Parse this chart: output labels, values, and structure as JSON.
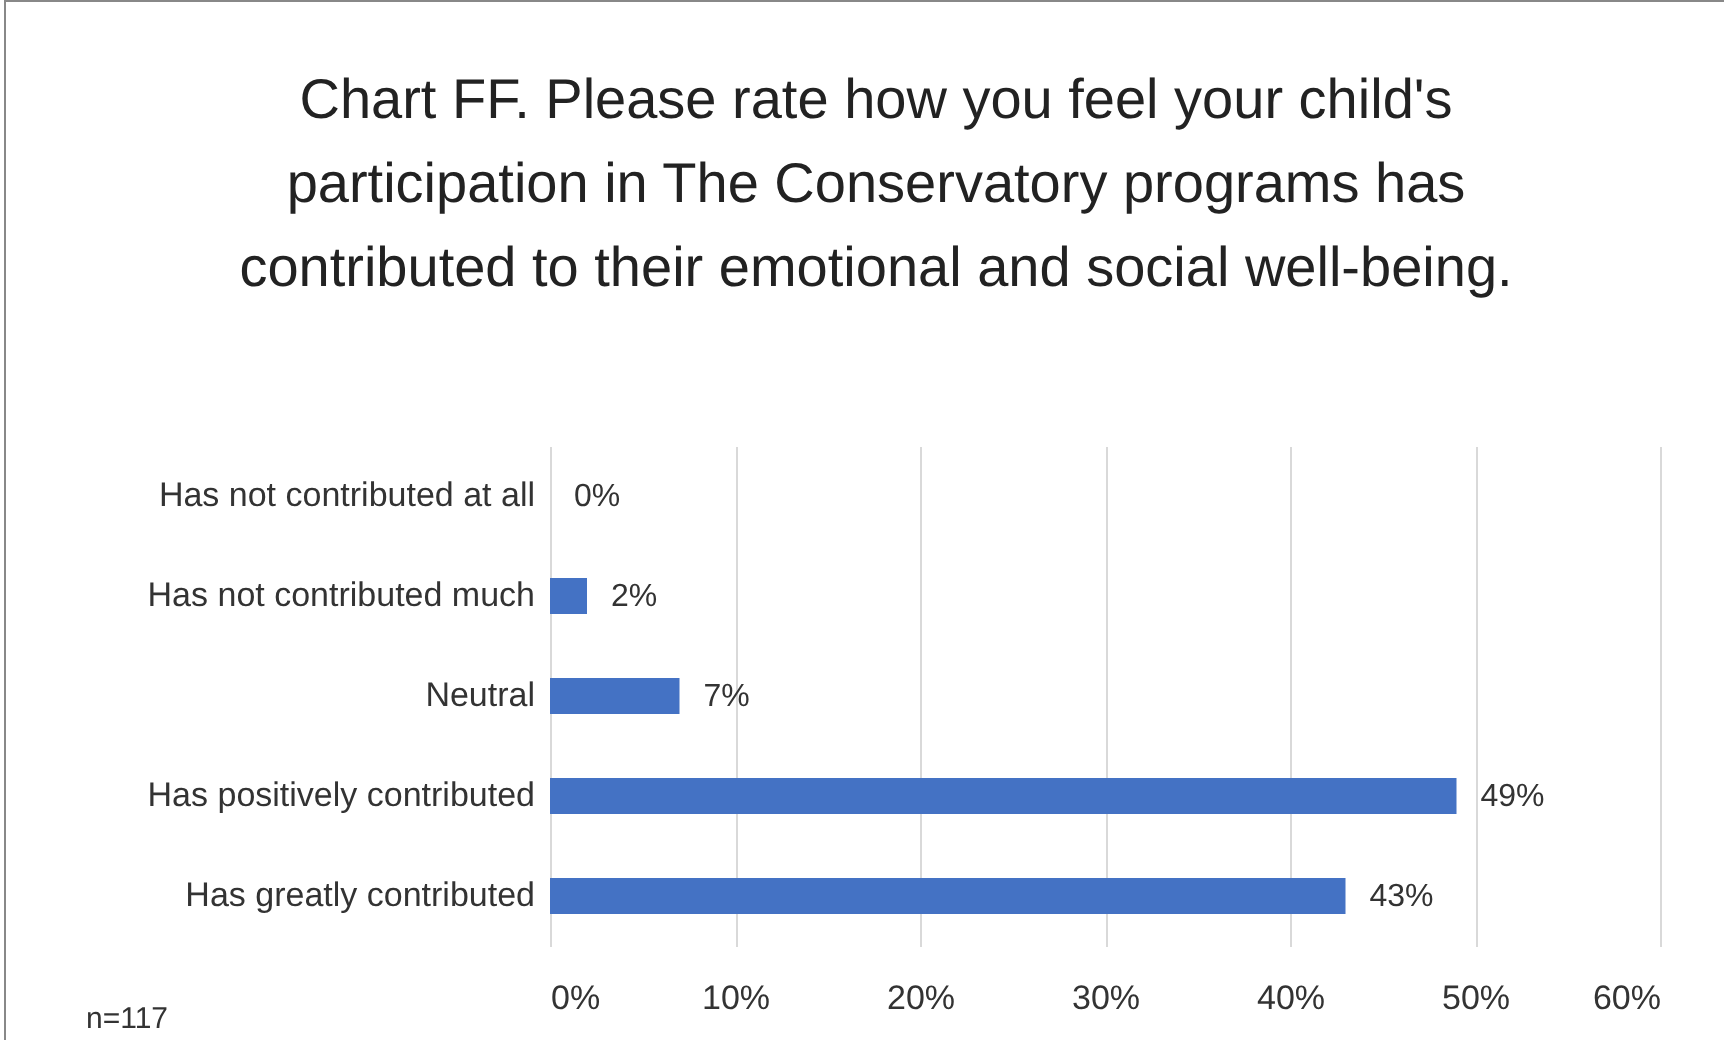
{
  "chart_data": {
    "type": "bar",
    "orientation": "horizontal",
    "title": "Chart FF. Please rate how you feel your child's participation in The Conservatory programs has contributed to their emotional and social well-being.",
    "categories": [
      "Has not contributed at all",
      "Has not contributed much",
      "Neutral",
      "Has positively contributed",
      "Has greatly contributed"
    ],
    "values": [
      0,
      2,
      7,
      49,
      43
    ],
    "value_labels": [
      "0%",
      "2%",
      "7%",
      "49%",
      "43%"
    ],
    "color": "#4472c4",
    "xlim": [
      0,
      60
    ],
    "xticks": [
      {
        "value": 0,
        "label": "0%"
      },
      {
        "value": 10,
        "label": "10%"
      },
      {
        "value": 20,
        "label": "20%"
      },
      {
        "value": 30,
        "label": "30%"
      },
      {
        "value": 40,
        "label": "40%"
      },
      {
        "value": 50,
        "label": "50%"
      },
      {
        "value": 60,
        "label": "60%"
      }
    ],
    "grid": "x",
    "annotations": [
      "n=117"
    ]
  }
}
